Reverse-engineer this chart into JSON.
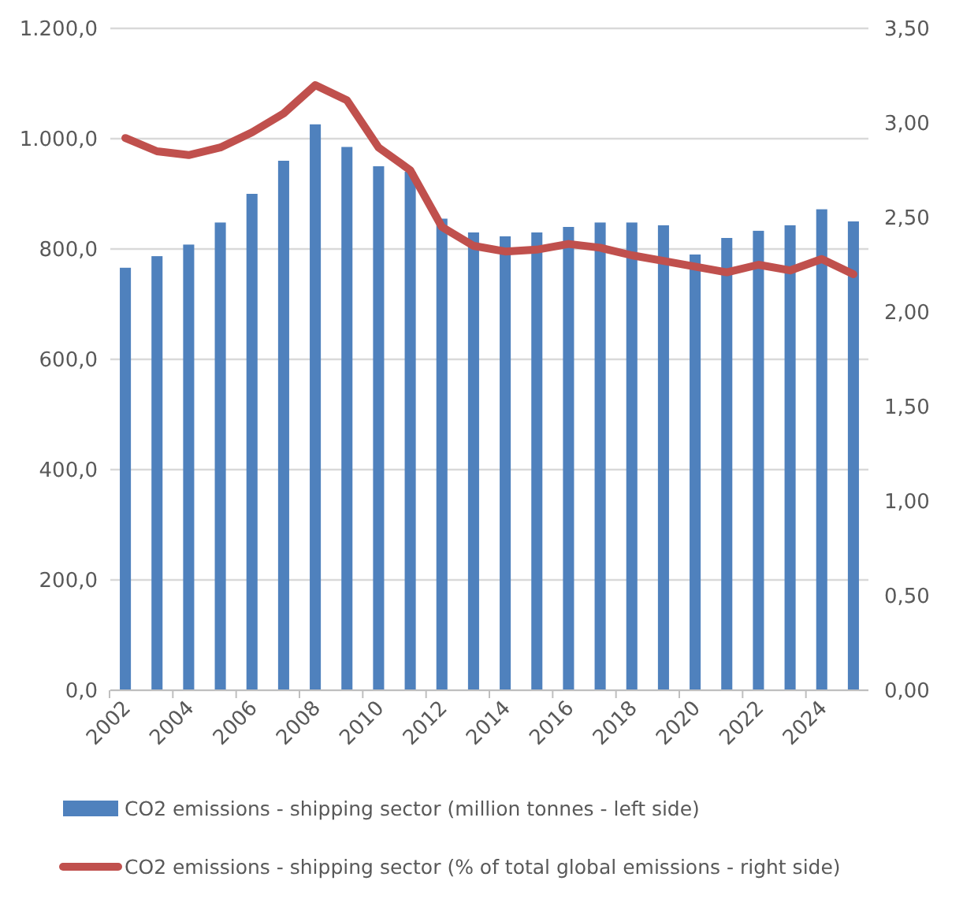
{
  "chart_data": {
    "type": "bar",
    "categories": [
      "2002",
      null,
      "2004",
      null,
      "2006",
      null,
      "2008",
      null,
      "2010",
      null,
      "2012",
      null,
      "2014",
      null,
      "2016",
      null,
      "2018",
      null,
      "2020",
      null,
      "2022",
      null,
      "2024",
      null
    ],
    "series": [
      {
        "name": "CO2 emissions - shipping sector (million tonnes - left side)",
        "color": "#4f81bd",
        "values": [
          766,
          787,
          808,
          848,
          900,
          960,
          1026,
          985,
          950,
          940,
          855,
          830,
          823,
          830,
          840,
          848,
          848,
          843,
          790,
          820,
          833,
          843,
          872,
          850
        ]
      },
      {
        "name": "CO2 emissions - shipping sector (% of total global emissions - right side)",
        "type": "line",
        "axis": "y2",
        "color": "#c0504d",
        "values": [
          2.92,
          2.85,
          2.83,
          2.87,
          2.95,
          3.05,
          3.2,
          3.12,
          2.87,
          2.75,
          2.45,
          2.35,
          2.32,
          2.33,
          2.36,
          2.34,
          2.3,
          2.27,
          2.24,
          2.21,
          2.25,
          2.22,
          2.28,
          2.2
        ]
      }
    ],
    "ylim": [
      0,
      1200
    ],
    "yticks": [
      {
        "value": 0,
        "label": "0,0"
      },
      {
        "value": 200,
        "label": "200,0"
      },
      {
        "value": 400,
        "label": "400,0"
      },
      {
        "value": 600,
        "label": "600,0"
      },
      {
        "value": 800,
        "label": "800,0"
      },
      {
        "value": 1000,
        "label": "1.000,0"
      },
      {
        "value": 1200,
        "label": "1.200,0"
      }
    ],
    "y2lim": [
      0,
      3.5
    ],
    "y2ticks": [
      {
        "value": 0,
        "label": "0,00"
      },
      {
        "value": 0.5,
        "label": "0,50"
      },
      {
        "value": 1,
        "label": "1,00"
      },
      {
        "value": 1.5,
        "label": "1,50"
      },
      {
        "value": 2,
        "label": "2,00"
      },
      {
        "value": 2.5,
        "label": "2,50"
      },
      {
        "value": 3,
        "label": "3,00"
      },
      {
        "value": 3.5,
        "label": "3,50"
      }
    ],
    "grid": "y",
    "legend": "bottom",
    "marker": "none",
    "line_style": "solid"
  }
}
